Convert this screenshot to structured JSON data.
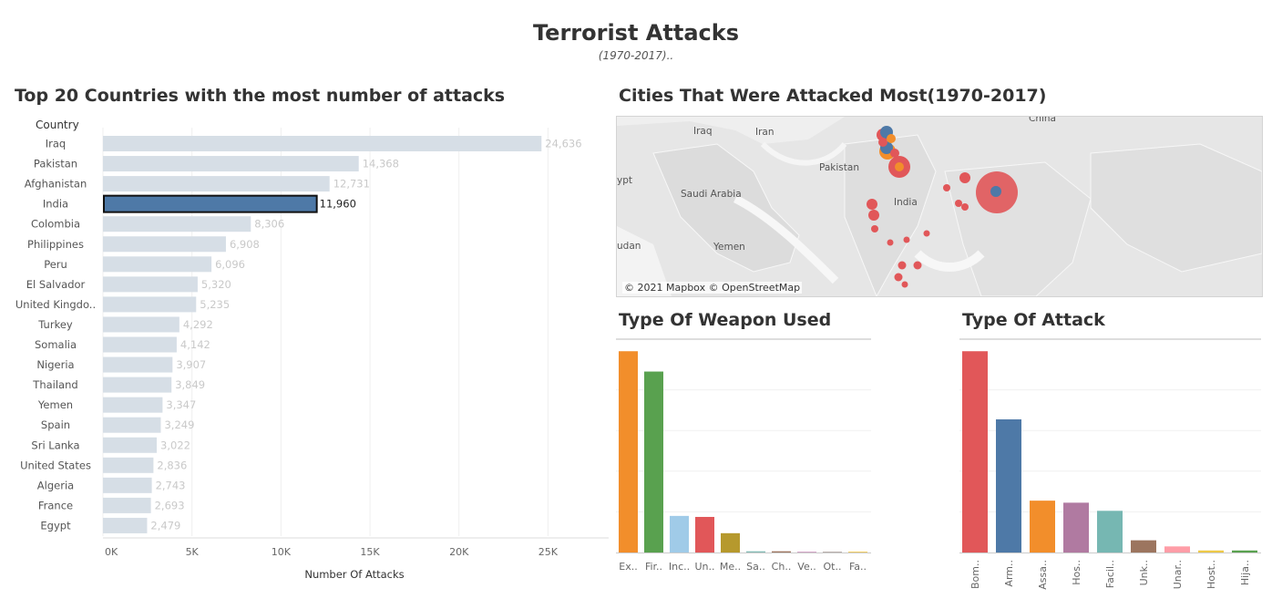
{
  "header": {
    "title": "Terrorist Attacks",
    "subtitle": "(1970-2017).."
  },
  "countries_chart": {
    "title": "Top 20 Countries with the most number of attacks",
    "row_header": "Country",
    "chart_data": {
      "type": "bar",
      "orientation": "horizontal",
      "xlabel": "Number Of Attacks",
      "xlim": [
        0,
        28000
      ],
      "x_ticks": [
        "0K",
        "5K",
        "10K",
        "15K",
        "20K",
        "25K"
      ],
      "x_tick_values": [
        0,
        5000,
        10000,
        15000,
        20000,
        25000
      ],
      "categories": [
        "Iraq",
        "Pakistan",
        "Afghanistan",
        "India",
        "Colombia",
        "Philippines",
        "Peru",
        "El Salvador",
        "United Kingdo..",
        "Turkey",
        "Somalia",
        "Nigeria",
        "Thailand",
        "Yemen",
        "Spain",
        "Sri Lanka",
        "United States",
        "Algeria",
        "France",
        "Egypt"
      ],
      "values": [
        24636,
        14368,
        12731,
        11960,
        8306,
        6908,
        6096,
        5320,
        5235,
        4292,
        4142,
        3907,
        3849,
        3347,
        3249,
        3022,
        2836,
        2743,
        2693,
        2479
      ],
      "value_labels": [
        "24,636",
        "14,368",
        "12,731",
        "11,960",
        "8,306",
        "6,908",
        "6,096",
        "5,320",
        "5,235",
        "4,292",
        "4,142",
        "3,907",
        "3,849",
        "3,347",
        "3,249",
        "3,022",
        "2,836",
        "2,743",
        "2,693",
        "2,479"
      ],
      "highlighted": "India",
      "colors": {
        "default": "#d6dee6",
        "highlight": "#4e79a7"
      }
    }
  },
  "map": {
    "title": "Cities That Were Attacked Most(1970-2017)",
    "attribution": "© 2021 Mapbox © OpenStreetMap",
    "labels": [
      "China",
      "Iraq",
      "Iran",
      "Pakistan",
      "ypt",
      "Saudi Arabia",
      "India",
      "Yemen",
      "udan"
    ],
    "marker_colors": {
      "red": "#e15759",
      "blue": "#4e79a7",
      "orange": "#f28e2b"
    }
  },
  "weapon_chart": {
    "title": "Type Of Weapon Used",
    "chart_data": {
      "type": "bar",
      "ylim": [
        0,
        1
      ],
      "categories": [
        "Ex..",
        "Fir..",
        "Inc..",
        "Un..",
        "Me..",
        "Sa..",
        "Ch..",
        "Ve..",
        "Ot..",
        "Fa.."
      ],
      "values": [
        0.99,
        0.89,
        0.18,
        0.175,
        0.095,
        0.006,
        0.006,
        0.002,
        0.002,
        0.001
      ],
      "colors": [
        "#f28e2b",
        "#59a14f",
        "#a0cbe8",
        "#e15759",
        "#b6992d",
        "#86bcb6",
        "#9d7660",
        "#d4a6c8",
        "#bab0ac",
        "#f1ce63"
      ]
    }
  },
  "attack_chart": {
    "title": "Type Of Attack",
    "chart_data": {
      "type": "bar",
      "ylim": [
        0,
        1
      ],
      "categories": [
        "Bom..",
        "Arm..",
        "Assa..",
        "Hos..",
        "Facil..",
        "Unk..",
        "Unar..",
        "Host..",
        "Hija.."
      ],
      "values": [
        0.99,
        0.655,
        0.255,
        0.245,
        0.205,
        0.06,
        0.03,
        0.01,
        0.01
      ],
      "colors": [
        "#e15759",
        "#4e79a7",
        "#f28e2b",
        "#b07aa1",
        "#76b7b2",
        "#9c755f",
        "#ff9da7",
        "#edc948",
        "#59a14f"
      ]
    }
  }
}
